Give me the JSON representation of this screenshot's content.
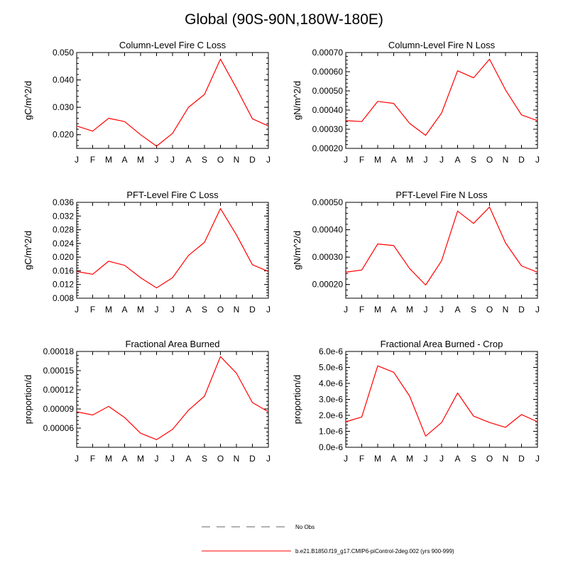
{
  "page": {
    "title": "Global (90S-90N,180W-180E)"
  },
  "legend": {
    "entries": [
      {
        "label": "No Obs",
        "style": "dashed",
        "color": "#999999"
      },
      {
        "label": "b.e21.B1850.f19_g17.CMIP6-piControl-2deg.002 (yrs 900-999)",
        "style": "solid",
        "color": "#ff0000"
      }
    ]
  },
  "chart_data": [
    {
      "type": "line",
      "title": "Column-Level Fire C Loss",
      "ylabel": "gC/m^2/d",
      "categories": [
        "J",
        "F",
        "M",
        "A",
        "M",
        "J",
        "J",
        "A",
        "S",
        "O",
        "N",
        "D",
        "J"
      ],
      "ylim": [
        0.015,
        0.05
      ],
      "yticks": [
        0.02,
        0.03,
        0.04,
        0.05
      ],
      "ytick_labels": [
        "0.020",
        "0.030",
        "0.040",
        "0.050"
      ],
      "series": [
        {
          "color": "#ff0000",
          "values": [
            0.0232,
            0.0213,
            0.026,
            0.0248,
            0.02,
            0.0158,
            0.0205,
            0.03,
            0.0347,
            0.0476,
            0.037,
            0.0258,
            0.0232
          ]
        }
      ]
    },
    {
      "type": "line",
      "title": "Column-Level Fire N Loss",
      "ylabel": "gN/m^2/d",
      "categories": [
        "J",
        "F",
        "M",
        "A",
        "M",
        "J",
        "J",
        "A",
        "S",
        "O",
        "N",
        "D",
        "J"
      ],
      "ylim": [
        0.0002,
        0.0007
      ],
      "yticks": [
        0.0002,
        0.0003,
        0.0004,
        0.0005,
        0.0006,
        0.0007
      ],
      "ytick_labels": [
        "0.00020",
        "0.00030",
        "0.00040",
        "0.00050",
        "0.00060",
        "0.00070"
      ],
      "series": [
        {
          "color": "#ff0000",
          "values": [
            0.000345,
            0.00034,
            0.000445,
            0.000435,
            0.00033,
            0.000268,
            0.000385,
            0.000605,
            0.000568,
            0.000665,
            0.000505,
            0.000375,
            0.000345
          ]
        }
      ]
    },
    {
      "type": "line",
      "title": "PFT-Level Fire C Loss",
      "ylabel": "gC/m^2/d",
      "categories": [
        "J",
        "F",
        "M",
        "A",
        "M",
        "J",
        "J",
        "A",
        "S",
        "O",
        "N",
        "D",
        "J"
      ],
      "ylim": [
        0.008,
        0.036
      ],
      "yticks": [
        0.008,
        0.012,
        0.016,
        0.02,
        0.024,
        0.028,
        0.032,
        0.036
      ],
      "ytick_labels": [
        "0.008",
        "0.012",
        "0.016",
        "0.020",
        "0.024",
        "0.028",
        "0.032",
        "0.036"
      ],
      "series": [
        {
          "color": "#ff0000",
          "values": [
            0.0158,
            0.015,
            0.0188,
            0.0176,
            0.014,
            0.011,
            0.014,
            0.0205,
            0.0243,
            0.0342,
            0.0265,
            0.0178,
            0.0158
          ]
        }
      ]
    },
    {
      "type": "line",
      "title": "PFT-Level Fire N Loss",
      "ylabel": "gN/m^2/d",
      "categories": [
        "J",
        "F",
        "M",
        "A",
        "M",
        "J",
        "J",
        "A",
        "S",
        "O",
        "N",
        "D",
        "J"
      ],
      "ylim": [
        0.00015,
        0.0005
      ],
      "yticks": [
        0.0002,
        0.0003,
        0.0004,
        0.0005
      ],
      "ytick_labels": [
        "0.00020",
        "0.00030",
        "0.00040",
        "0.00050"
      ],
      "series": [
        {
          "color": "#ff0000",
          "values": [
            0.000245,
            0.000253,
            0.000348,
            0.000342,
            0.000258,
            0.000198,
            0.000287,
            0.000468,
            0.000423,
            0.000483,
            0.000352,
            0.000268,
            0.000245
          ]
        }
      ]
    },
    {
      "type": "line",
      "title": "Fractional Area Burned",
      "ylabel": "proportion/d",
      "categories": [
        "J",
        "F",
        "M",
        "A",
        "M",
        "J",
        "J",
        "A",
        "S",
        "O",
        "N",
        "D",
        "J"
      ],
      "ylim": [
        3e-05,
        0.00018
      ],
      "yticks": [
        6e-05,
        9e-05,
        0.00012,
        0.00015,
        0.00018
      ],
      "ytick_labels": [
        "0.00006",
        "0.00009",
        "0.00012",
        "0.00015",
        "0.00018"
      ],
      "series": [
        {
          "color": "#ff0000",
          "values": [
            8.55e-05,
            8.05e-05,
            9.4e-05,
            7.65e-05,
            5.2e-05,
            4.2e-05,
            5.8e-05,
            8.8e-05,
            0.00011,
            0.000172,
            0.000146,
            0.0001,
            8.55e-05
          ]
        }
      ]
    },
    {
      "type": "line",
      "title": "Fractional Area Burned - Crop",
      "ylabel": "proportion/d",
      "categories": [
        "J",
        "F",
        "M",
        "A",
        "M",
        "J",
        "J",
        "A",
        "S",
        "O",
        "N",
        "D",
        "J"
      ],
      "ylim": [
        0.0,
        6.0
      ],
      "yticks": [
        0.0,
        1.0,
        2.0,
        3.0,
        4.0,
        5.0,
        6.0
      ],
      "ytick_labels": [
        "0.0e-6",
        "1.0e-6",
        "2.0e-6",
        "3.0e-6",
        "4.0e-6",
        "5.0e-6",
        "6.0e-6"
      ],
      "y_unit": "e-6",
      "series": [
        {
          "color": "#ff0000",
          "values": [
            1.6,
            1.9,
            5.1,
            4.7,
            3.2,
            0.7,
            1.55,
            3.4,
            1.95,
            1.55,
            1.25,
            2.05,
            1.6
          ]
        }
      ]
    }
  ]
}
